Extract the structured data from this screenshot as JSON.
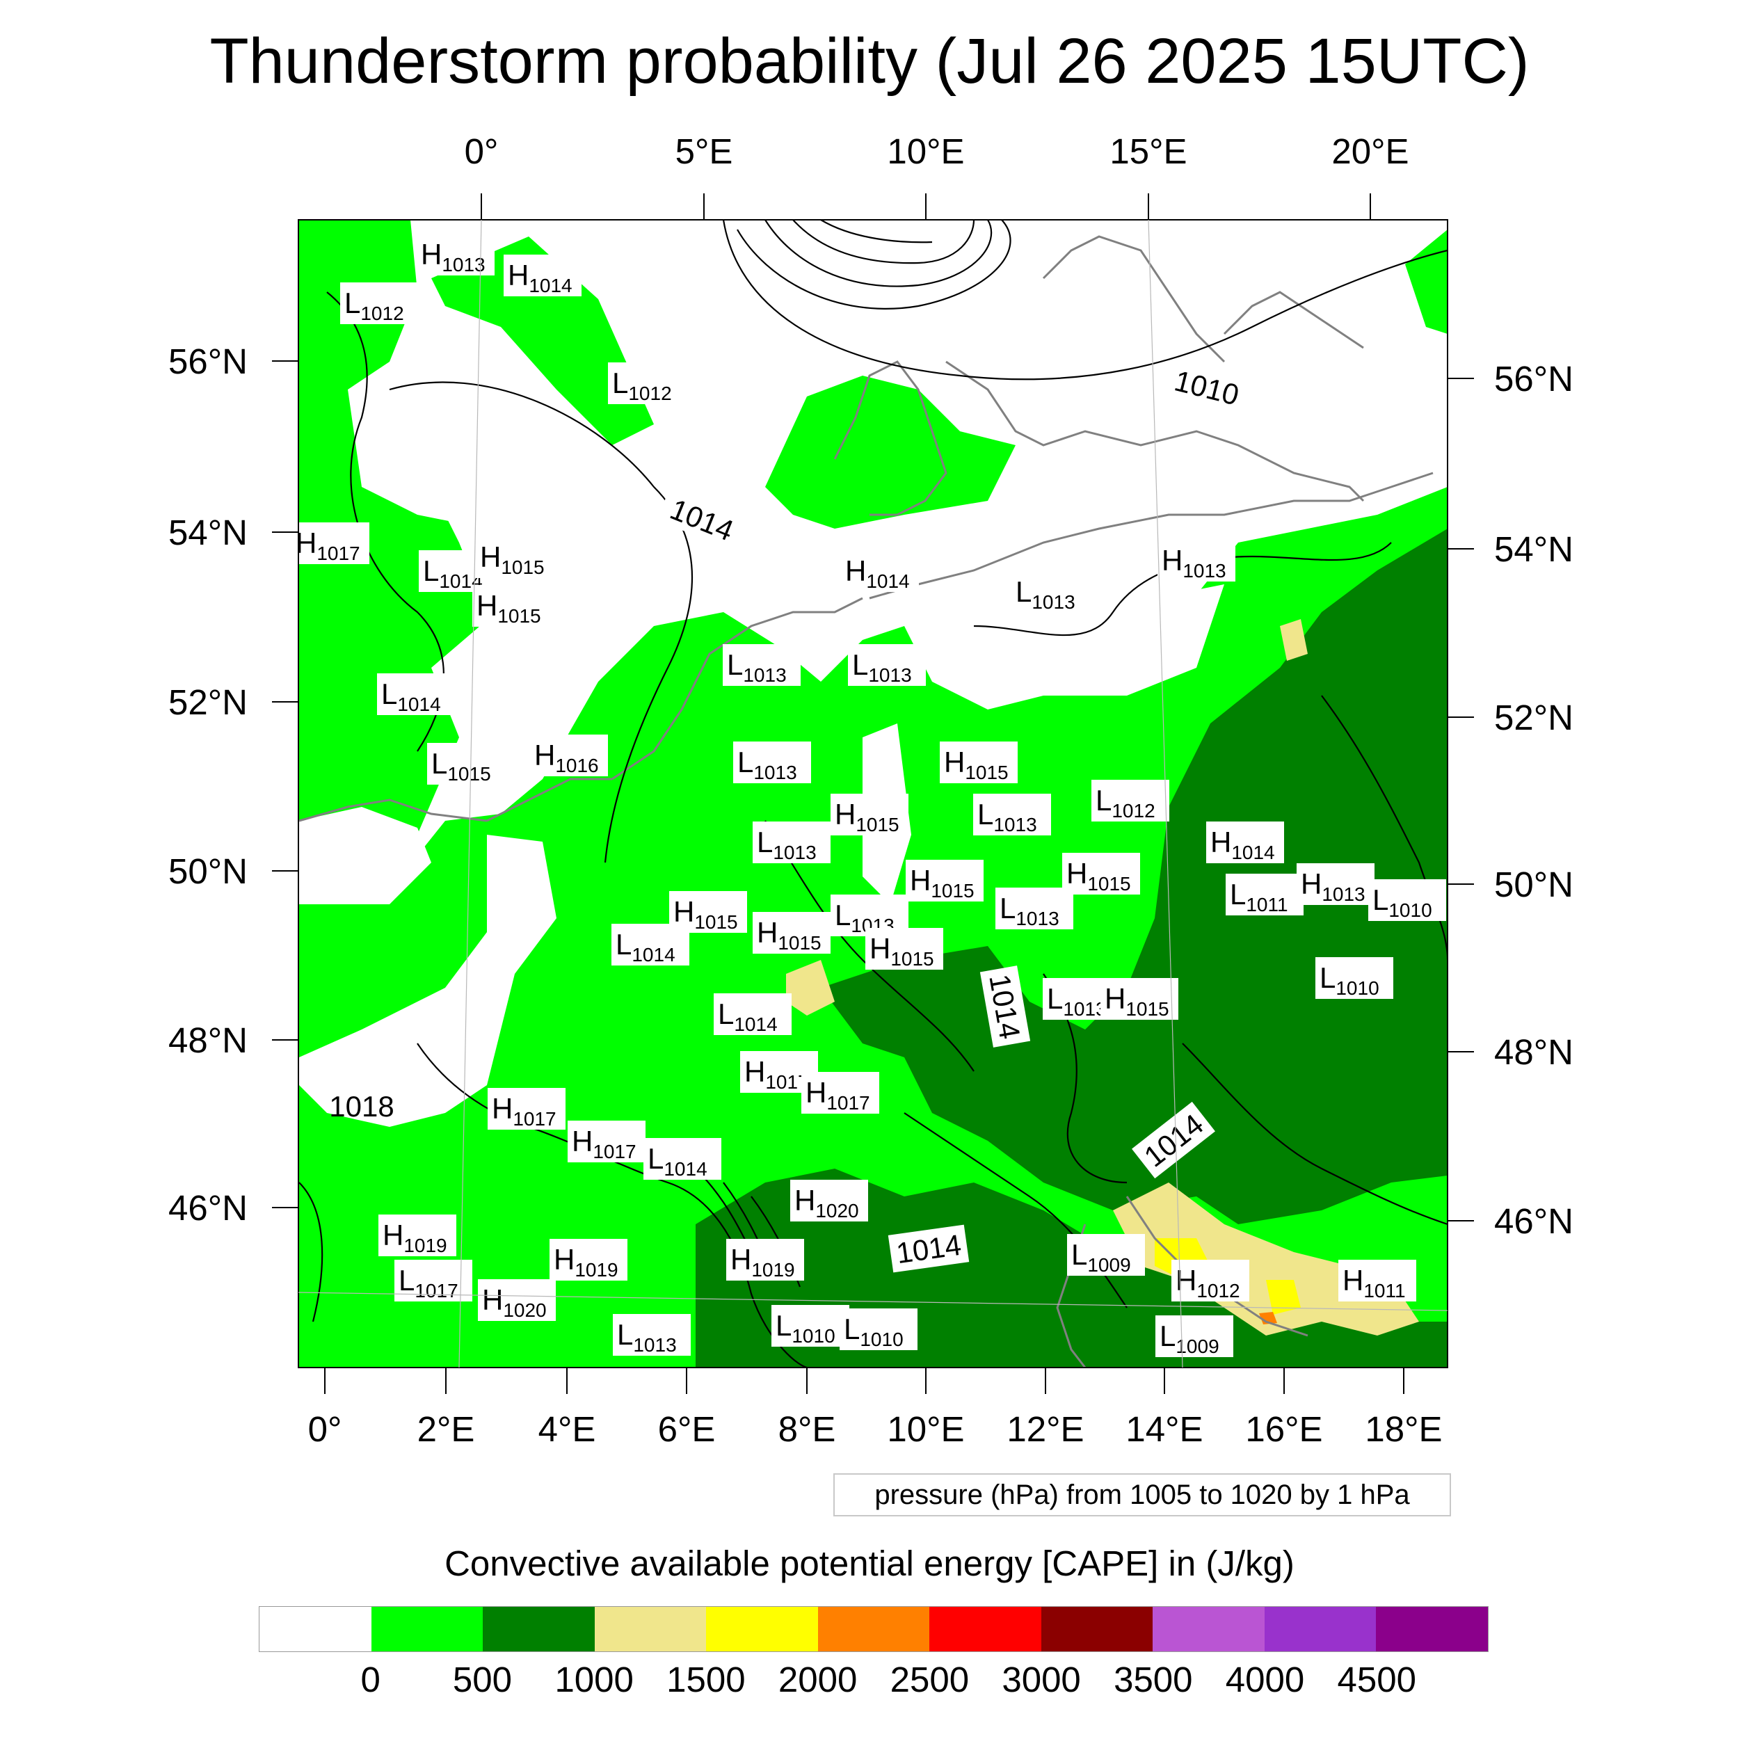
{
  "title": "Thunderstorm probability (Jul 26 2025 15UTC)",
  "top_lon_labels": [
    "0°",
    "5°E",
    "10°E",
    "15°E",
    "20°E"
  ],
  "left_lat_labels": [
    "56°N",
    "54°N",
    "52°N",
    "50°N",
    "48°N",
    "46°N"
  ],
  "right_lat_labels": [
    "56°N",
    "54°N",
    "52°N",
    "50°N",
    "48°N",
    "46°N"
  ],
  "bottom_lon_labels": [
    "0°",
    "2°E",
    "4°E",
    "6°E",
    "8°E",
    "10°E",
    "12°E",
    "14°E",
    "16°E",
    "18°E"
  ],
  "pressure_legend": "pressure (hPa) from 1005 to 1020 by 1 hPa",
  "colorbar": {
    "title": "Convective available potential energy [CAPE] in (J/kg)",
    "colors": [
      "#ffffff",
      "#00ff00",
      "#008000",
      "#f0e68c",
      "#ffff00",
      "#ff8000",
      "#ff0000",
      "#8b0000",
      "#ba55d3",
      "#9932cc",
      "#8b008b"
    ],
    "labels": [
      "0",
      "500",
      "1000",
      "1500",
      "2000",
      "2500",
      "3000",
      "3500",
      "4000",
      "4500"
    ]
  },
  "isobar_labels": [
    "1014",
    "1010",
    "1018",
    "1014",
    "1014",
    "1014"
  ],
  "pressure_centers": [
    {
      "letter": "H",
      "value": "1013"
    },
    {
      "letter": "H",
      "value": "1014"
    },
    {
      "letter": "L",
      "value": "1012"
    },
    {
      "letter": "L",
      "value": "1012"
    },
    {
      "letter": "H",
      "value": "1017"
    },
    {
      "letter": "L",
      "value": "1014"
    },
    {
      "letter": "H",
      "value": "1015"
    },
    {
      "letter": "H",
      "value": "1015"
    },
    {
      "letter": "H",
      "value": "1014"
    },
    {
      "letter": "L",
      "value": "1013"
    },
    {
      "letter": "H",
      "value": "1013"
    },
    {
      "letter": "L",
      "value": "1014"
    },
    {
      "letter": "L",
      "value": "1013"
    },
    {
      "letter": "L",
      "value": "1013"
    },
    {
      "letter": "L",
      "value": "1015"
    },
    {
      "letter": "H",
      "value": "1016"
    },
    {
      "letter": "L",
      "value": "1013"
    },
    {
      "letter": "H",
      "value": "1015"
    },
    {
      "letter": "H",
      "value": "1015"
    },
    {
      "letter": "L",
      "value": "1013"
    },
    {
      "letter": "L",
      "value": "1012"
    },
    {
      "letter": "L",
      "value": "1013"
    },
    {
      "letter": "H",
      "value": "1014"
    },
    {
      "letter": "H",
      "value": "1015"
    },
    {
      "letter": "H",
      "value": "1015"
    },
    {
      "letter": "L",
      "value": "1011"
    },
    {
      "letter": "H",
      "value": "1013"
    },
    {
      "letter": "L",
      "value": "1010"
    },
    {
      "letter": "H",
      "value": "1015"
    },
    {
      "letter": "L",
      "value": "1013"
    },
    {
      "letter": "L",
      "value": "1013"
    },
    {
      "letter": "L",
      "value": "1014"
    },
    {
      "letter": "H",
      "value": "1015"
    },
    {
      "letter": "H",
      "value": "1015"
    },
    {
      "letter": "L",
      "value": "1010"
    },
    {
      "letter": "L",
      "value": "1013"
    },
    {
      "letter": "H",
      "value": "1015"
    },
    {
      "letter": "L",
      "value": "1014"
    },
    {
      "letter": "H",
      "value": "1017"
    },
    {
      "letter": "H",
      "value": "1017"
    },
    {
      "letter": "H",
      "value": "1017"
    },
    {
      "letter": "H",
      "value": "1017"
    },
    {
      "letter": "L",
      "value": "1014"
    },
    {
      "letter": "H",
      "value": "1020"
    },
    {
      "letter": "H",
      "value": "1019"
    },
    {
      "letter": "H",
      "value": "1019"
    },
    {
      "letter": "L",
      "value": "1017"
    },
    {
      "letter": "H",
      "value": "1019"
    },
    {
      "letter": "H",
      "value": "1020"
    },
    {
      "letter": "L",
      "value": "1013"
    },
    {
      "letter": "L",
      "value": "1010"
    },
    {
      "letter": "L",
      "value": "1010"
    },
    {
      "letter": "L",
      "value": "1009"
    },
    {
      "letter": "H",
      "value": "1012"
    },
    {
      "letter": "L",
      "value": "1009"
    },
    {
      "letter": "H",
      "value": "1011"
    }
  ]
}
